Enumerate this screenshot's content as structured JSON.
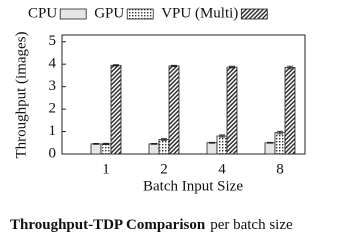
{
  "chart_data": {
    "type": "bar",
    "y_label": "Throughput (images)",
    "x_label": "Batch Input Size",
    "caption_bold": "Throughput-TDP Comparison",
    "caption_rest": "per batch size",
    "categories": [
      "1",
      "2",
      "4",
      "8"
    ],
    "series": [
      {
        "name": "CPU",
        "color": "#e6e6e6",
        "pattern": "none",
        "values": [
          0.45,
          0.45,
          0.5,
          0.5
        ],
        "errors": [
          0.02,
          0.02,
          0.02,
          0.02
        ]
      },
      {
        "name": "GPU",
        "color": "#555555",
        "pattern": "dots",
        "values": [
          0.45,
          0.65,
          0.8,
          0.95
        ],
        "errors": [
          0.03,
          0.04,
          0.05,
          0.06
        ]
      },
      {
        "name": "VPU (Multi)",
        "color": "#555555",
        "pattern": "hatch",
        "values": [
          3.95,
          3.92,
          3.87,
          3.85
        ],
        "errors": [
          0.03,
          0.03,
          0.04,
          0.06
        ]
      }
    ],
    "ylim": [
      0,
      5.3
    ],
    "yticks": [
      0,
      1,
      2,
      3,
      4,
      5
    ],
    "grid": false,
    "legend": "top"
  }
}
